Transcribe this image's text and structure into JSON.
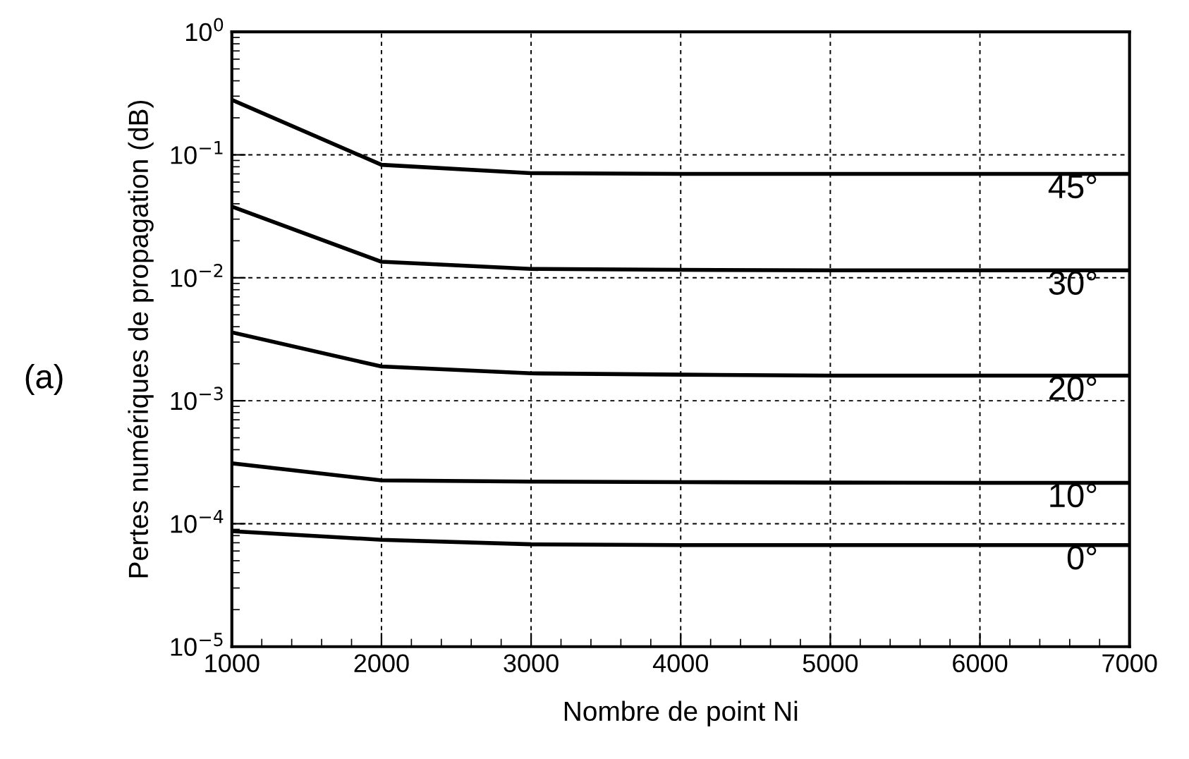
{
  "chart_data": {
    "type": "line",
    "xlabel": "Nombre de point Ni",
    "ylabel": "Pertes numériques de propagation (dB)",
    "x": [
      1000,
      2000,
      3000,
      4000,
      5000,
      6000,
      7000
    ],
    "series": [
      {
        "name": "45°",
        "color": "#000000",
        "values": [
          0.28,
          0.083,
          0.071,
          0.07,
          0.07,
          0.07,
          0.07
        ]
      },
      {
        "name": "30°",
        "color": "#000000",
        "values": [
          0.038,
          0.0135,
          0.0118,
          0.0116,
          0.0115,
          0.0115,
          0.0115
        ]
      },
      {
        "name": "20°",
        "color": "#000000",
        "values": [
          0.0036,
          0.0019,
          0.00167,
          0.00163,
          0.0016,
          0.0016,
          0.0016
        ]
      },
      {
        "name": "10°",
        "color": "#000000",
        "values": [
          0.00031,
          0.000225,
          0.00022,
          0.000218,
          0.000216,
          0.000215,
          0.000215
        ]
      },
      {
        "name": "0°",
        "color": "#000000",
        "values": [
          8.7e-05,
          7.4e-05,
          6.8e-05,
          6.7e-05,
          6.7e-05,
          6.7e-05,
          6.7e-05
        ]
      }
    ],
    "log": "y",
    "xlim": [
      1000,
      7000
    ],
    "xticks": [
      1000,
      2000,
      3000,
      4000,
      5000,
      6000,
      7000
    ],
    "ylim": [
      1e-05,
      1
    ],
    "yticks": [
      {
        "value": 1e-05,
        "label": "10$^{−5}$"
      },
      {
        "value": 0.0001,
        "label": "10$^{−4}$"
      },
      {
        "value": 0.001,
        "label": "10$^{−3}$"
      },
      {
        "value": 0.01,
        "label": "10$^{−2}$"
      },
      {
        "value": 0.1,
        "label": "10$^{−1}$"
      },
      {
        "value": 1,
        "label": "10$^{0}$"
      }
    ],
    "grid": true,
    "line_style": "solid",
    "marker": "none",
    "legend": false,
    "annotations": [
      "(a)"
    ]
  }
}
